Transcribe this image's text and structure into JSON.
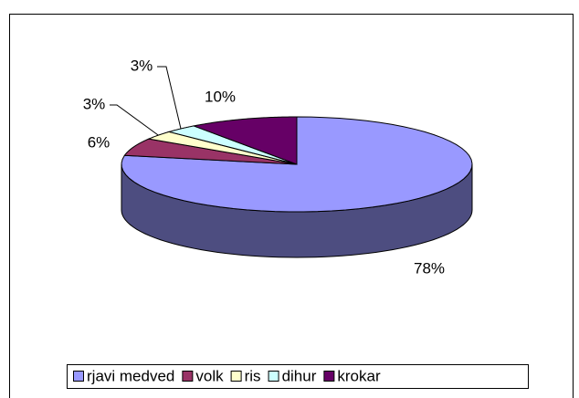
{
  "chart_data": {
    "type": "pie",
    "categories": [
      "rjavi medved",
      "volk",
      "ris",
      "dihur",
      "krokar"
    ],
    "values": [
      78,
      6,
      3,
      3,
      10
    ],
    "value_labels": [
      "78%",
      "6%",
      "3%",
      "3%",
      "10%"
    ],
    "colors": [
      "#9999ff",
      "#993366",
      "#ffffcc",
      "#ccffff",
      "#660066"
    ],
    "legend": "bottom"
  }
}
